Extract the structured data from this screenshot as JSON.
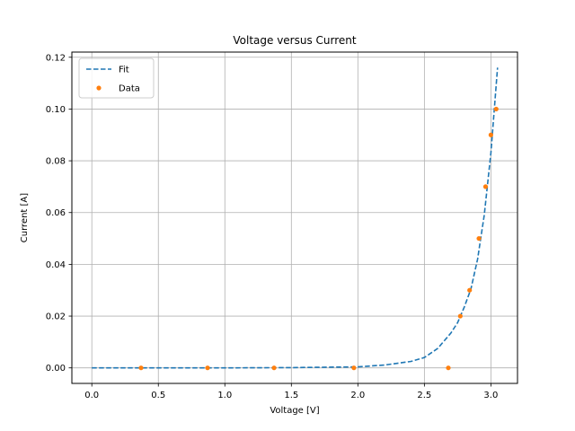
{
  "chart_data": {
    "type": "line",
    "title": "Voltage versus Current",
    "xlabel": "Voltage [V]",
    "ylabel": "Current [A]",
    "xlim": [
      -0.15,
      3.2
    ],
    "ylim": [
      -0.006,
      0.122
    ],
    "xticks": [
      0.0,
      0.5,
      1.0,
      1.5,
      2.0,
      2.5,
      3.0
    ],
    "xtick_labels": [
      "0.0",
      "0.5",
      "1.0",
      "1.5",
      "2.0",
      "2.5",
      "3.0"
    ],
    "yticks": [
      0.0,
      0.02,
      0.04,
      0.06,
      0.08,
      0.1,
      0.12
    ],
    "ytick_labels": [
      "0.00",
      "0.02",
      "0.04",
      "0.06",
      "0.08",
      "0.10",
      "0.12"
    ],
    "grid": true,
    "legend_position": "top-left",
    "series": [
      {
        "name": "Fit",
        "style": "dashed-line",
        "color": "#1f77b4",
        "x": [
          0.0,
          0.5,
          1.0,
          1.5,
          2.0,
          2.2,
          2.4,
          2.5,
          2.6,
          2.7,
          2.75,
          2.8,
          2.85,
          2.9,
          2.95,
          3.0,
          3.05
        ],
        "y": [
          0.0,
          0.0,
          0.0,
          0.0001,
          0.0004,
          0.0011,
          0.0025,
          0.004,
          0.0075,
          0.0135,
          0.0175,
          0.0235,
          0.0305,
          0.042,
          0.059,
          0.083,
          0.116
        ]
      },
      {
        "name": "Data",
        "style": "points",
        "color": "#ff7f0e",
        "x": [
          0.37,
          0.87,
          1.37,
          1.97,
          2.68,
          2.77,
          2.84,
          2.91,
          2.96,
          3.0,
          3.04
        ],
        "y": [
          0.0,
          0.0,
          0.0,
          0.0,
          0.0,
          0.02,
          0.03,
          0.05,
          0.07,
          0.09,
          0.1
        ]
      }
    ]
  }
}
